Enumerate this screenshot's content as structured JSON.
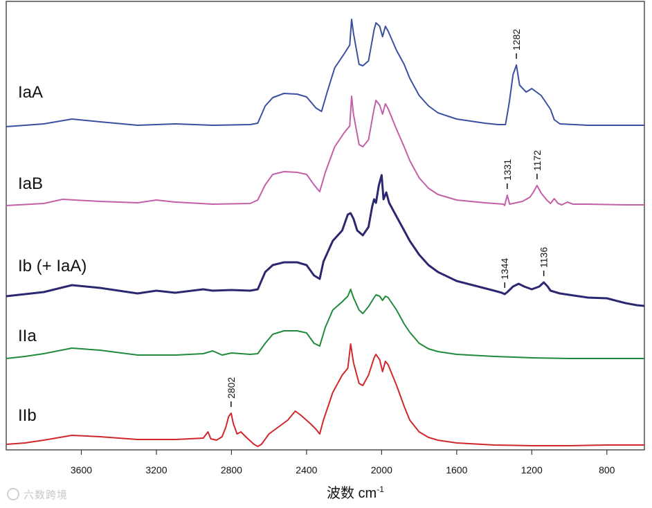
{
  "chart_data": {
    "type": "line",
    "title": "",
    "xlabel": "波数 cm",
    "xlabel_superscript": "-1",
    "ylabel": "",
    "xlim": [
      4000,
      600
    ],
    "x_ticks": [
      3600,
      3200,
      2800,
      2400,
      2000,
      1600,
      1200,
      800
    ],
    "grid": false,
    "legend": "none",
    "series": [
      {
        "name": "IaA",
        "color": "#3a4fa0",
        "stroke": 2,
        "baseline": 0,
        "points": [
          [
            4000,
            0
          ],
          [
            3800,
            4
          ],
          [
            3650,
            11
          ],
          [
            3500,
            7
          ],
          [
            3300,
            2
          ],
          [
            3100,
            4
          ],
          [
            2900,
            2
          ],
          [
            2700,
            3
          ],
          [
            2660,
            5
          ],
          [
            2620,
            30
          ],
          [
            2580,
            42
          ],
          [
            2520,
            48
          ],
          [
            2450,
            47
          ],
          [
            2400,
            43
          ],
          [
            2350,
            27
          ],
          [
            2320,
            22
          ],
          [
            2290,
            50
          ],
          [
            2250,
            85
          ],
          [
            2200,
            105
          ],
          [
            2170,
            118
          ],
          [
            2160,
            155
          ],
          [
            2150,
            135
          ],
          [
            2120,
            90
          ],
          [
            2100,
            88
          ],
          [
            2070,
            95
          ],
          [
            2040,
            140
          ],
          [
            2030,
            150
          ],
          [
            2010,
            145
          ],
          [
            1995,
            130
          ],
          [
            1980,
            145
          ],
          [
            1965,
            138
          ],
          [
            1920,
            110
          ],
          [
            1880,
            90
          ],
          [
            1850,
            70
          ],
          [
            1800,
            45
          ],
          [
            1750,
            30
          ],
          [
            1700,
            20
          ],
          [
            1600,
            11
          ],
          [
            1450,
            5
          ],
          [
            1380,
            3
          ],
          [
            1340,
            3
          ],
          [
            1320,
            35
          ],
          [
            1300,
            75
          ],
          [
            1282,
            89
          ],
          [
            1265,
            60
          ],
          [
            1230,
            50
          ],
          [
            1200,
            55
          ],
          [
            1150,
            45
          ],
          [
            1100,
            25
          ],
          [
            1080,
            10
          ],
          [
            1050,
            4
          ],
          [
            900,
            2
          ],
          [
            700,
            2
          ],
          [
            600,
            2
          ]
        ]
      },
      {
        "name": "IaB",
        "color": "#c25fa8",
        "stroke": 2,
        "baseline": 0,
        "points": [
          [
            4000,
            0
          ],
          [
            3800,
            3
          ],
          [
            3700,
            9
          ],
          [
            3500,
            6
          ],
          [
            3300,
            4
          ],
          [
            3200,
            8
          ],
          [
            3100,
            5
          ],
          [
            2900,
            2
          ],
          [
            2700,
            3
          ],
          [
            2660,
            8
          ],
          [
            2620,
            30
          ],
          [
            2580,
            45
          ],
          [
            2520,
            49
          ],
          [
            2450,
            48
          ],
          [
            2400,
            45
          ],
          [
            2360,
            30
          ],
          [
            2330,
            20
          ],
          [
            2300,
            48
          ],
          [
            2250,
            85
          ],
          [
            2200,
            105
          ],
          [
            2170,
            115
          ],
          [
            2160,
            158
          ],
          [
            2150,
            132
          ],
          [
            2120,
            88
          ],
          [
            2100,
            85
          ],
          [
            2070,
            95
          ],
          [
            2040,
            140
          ],
          [
            2030,
            152
          ],
          [
            2010,
            145
          ],
          [
            1995,
            132
          ],
          [
            1980,
            147
          ],
          [
            1965,
            140
          ],
          [
            1920,
            110
          ],
          [
            1880,
            85
          ],
          [
            1850,
            65
          ],
          [
            1800,
            40
          ],
          [
            1750,
            25
          ],
          [
            1700,
            16
          ],
          [
            1600,
            8
          ],
          [
            1450,
            4
          ],
          [
            1350,
            2
          ],
          [
            1344,
            0
          ],
          [
            1331,
            15
          ],
          [
            1318,
            2
          ],
          [
            1250,
            6
          ],
          [
            1210,
            12
          ],
          [
            1190,
            20
          ],
          [
            1172,
            29
          ],
          [
            1150,
            18
          ],
          [
            1120,
            8
          ],
          [
            1100,
            3
          ],
          [
            1080,
            10
          ],
          [
            1060,
            3
          ],
          [
            1040,
            1
          ],
          [
            1010,
            5
          ],
          [
            980,
            2
          ],
          [
            900,
            2
          ],
          [
            700,
            1
          ],
          [
            600,
            1
          ]
        ]
      },
      {
        "name": "Ib (+ IaA)",
        "color": "#2b2770",
        "stroke": 3,
        "baseline": 0,
        "points": [
          [
            4000,
            0
          ],
          [
            3900,
            3
          ],
          [
            3800,
            6
          ],
          [
            3650,
            16
          ],
          [
            3500,
            12
          ],
          [
            3300,
            4
          ],
          [
            3200,
            8
          ],
          [
            3100,
            5
          ],
          [
            2950,
            10
          ],
          [
            2900,
            8
          ],
          [
            2800,
            9
          ],
          [
            2700,
            8
          ],
          [
            2660,
            10
          ],
          [
            2620,
            35
          ],
          [
            2580,
            45
          ],
          [
            2520,
            49
          ],
          [
            2450,
            49
          ],
          [
            2400,
            45
          ],
          [
            2360,
            30
          ],
          [
            2330,
            25
          ],
          [
            2310,
            50
          ],
          [
            2260,
            80
          ],
          [
            2210,
            95
          ],
          [
            2180,
            118
          ],
          [
            2165,
            120
          ],
          [
            2150,
            112
          ],
          [
            2130,
            95
          ],
          [
            2100,
            88
          ],
          [
            2070,
            100
          ],
          [
            2050,
            130
          ],
          [
            2040,
            140
          ],
          [
            2030,
            135
          ],
          [
            2015,
            160
          ],
          [
            2000,
            175
          ],
          [
            1990,
            140
          ],
          [
            1975,
            150
          ],
          [
            1960,
            135
          ],
          [
            1920,
            115
          ],
          [
            1880,
            95
          ],
          [
            1850,
            80
          ],
          [
            1800,
            60
          ],
          [
            1750,
            45
          ],
          [
            1700,
            35
          ],
          [
            1600,
            22
          ],
          [
            1500,
            15
          ],
          [
            1400,
            8
          ],
          [
            1360,
            5
          ],
          [
            1344,
            3
          ],
          [
            1330,
            6
          ],
          [
            1300,
            14
          ],
          [
            1270,
            18
          ],
          [
            1240,
            14
          ],
          [
            1200,
            10
          ],
          [
            1160,
            14
          ],
          [
            1136,
            20
          ],
          [
            1115,
            14
          ],
          [
            1100,
            8
          ],
          [
            1050,
            4
          ],
          [
            1000,
            2
          ],
          [
            900,
            -2
          ],
          [
            800,
            -3
          ],
          [
            700,
            -10
          ],
          [
            640,
            -13
          ],
          [
            600,
            -14
          ]
        ]
      },
      {
        "name": "IIa",
        "color": "#1e8a3a",
        "stroke": 2,
        "baseline": 0,
        "points": [
          [
            4000,
            0
          ],
          [
            3900,
            3
          ],
          [
            3800,
            7
          ],
          [
            3650,
            15
          ],
          [
            3500,
            12
          ],
          [
            3300,
            5
          ],
          [
            3100,
            5
          ],
          [
            2950,
            7
          ],
          [
            2900,
            11
          ],
          [
            2850,
            5
          ],
          [
            2800,
            8
          ],
          [
            2700,
            6
          ],
          [
            2660,
            7
          ],
          [
            2620,
            22
          ],
          [
            2580,
            35
          ],
          [
            2520,
            40
          ],
          [
            2450,
            40
          ],
          [
            2400,
            37
          ],
          [
            2360,
            22
          ],
          [
            2330,
            18
          ],
          [
            2300,
            45
          ],
          [
            2260,
            70
          ],
          [
            2210,
            82
          ],
          [
            2180,
            90
          ],
          [
            2165,
            100
          ],
          [
            2150,
            88
          ],
          [
            2120,
            70
          ],
          [
            2100,
            65
          ],
          [
            2070,
            75
          ],
          [
            2040,
            88
          ],
          [
            2030,
            92
          ],
          [
            2010,
            90
          ],
          [
            1995,
            84
          ],
          [
            1980,
            90
          ],
          [
            1965,
            88
          ],
          [
            1920,
            70
          ],
          [
            1880,
            50
          ],
          [
            1850,
            38
          ],
          [
            1800,
            22
          ],
          [
            1750,
            14
          ],
          [
            1700,
            10
          ],
          [
            1600,
            6
          ],
          [
            1400,
            3
          ],
          [
            1200,
            1
          ],
          [
            1000,
            0
          ],
          [
            800,
            0
          ],
          [
            600,
            0
          ]
        ]
      },
      {
        "name": "IIb",
        "color": "#d1262b",
        "stroke": 2,
        "baseline": 0,
        "points": [
          [
            4000,
            0
          ],
          [
            3900,
            2
          ],
          [
            3800,
            6
          ],
          [
            3650,
            13
          ],
          [
            3500,
            11
          ],
          [
            3300,
            7
          ],
          [
            3100,
            7
          ],
          [
            2950,
            9
          ],
          [
            2925,
            18
          ],
          [
            2910,
            8
          ],
          [
            2880,
            6
          ],
          [
            2850,
            11
          ],
          [
            2830,
            25
          ],
          [
            2815,
            40
          ],
          [
            2802,
            45
          ],
          [
            2790,
            30
          ],
          [
            2770,
            15
          ],
          [
            2750,
            18
          ],
          [
            2720,
            10
          ],
          [
            2700,
            5
          ],
          [
            2680,
            0
          ],
          [
            2660,
            -3
          ],
          [
            2640,
            0
          ],
          [
            2600,
            15
          ],
          [
            2550,
            25
          ],
          [
            2500,
            35
          ],
          [
            2460,
            48
          ],
          [
            2430,
            42
          ],
          [
            2380,
            30
          ],
          [
            2350,
            22
          ],
          [
            2330,
            15
          ],
          [
            2310,
            35
          ],
          [
            2260,
            75
          ],
          [
            2210,
            100
          ],
          [
            2180,
            110
          ],
          [
            2165,
            145
          ],
          [
            2150,
            118
          ],
          [
            2120,
            88
          ],
          [
            2100,
            85
          ],
          [
            2070,
            100
          ],
          [
            2040,
            125
          ],
          [
            2030,
            130
          ],
          [
            2010,
            122
          ],
          [
            1995,
            105
          ],
          [
            1980,
            120
          ],
          [
            1965,
            115
          ],
          [
            1920,
            85
          ],
          [
            1880,
            55
          ],
          [
            1850,
            35
          ],
          [
            1800,
            18
          ],
          [
            1750,
            10
          ],
          [
            1700,
            6
          ],
          [
            1600,
            2
          ],
          [
            1400,
            -1
          ],
          [
            1200,
            -2
          ],
          [
            1000,
            -2
          ],
          [
            800,
            -1
          ],
          [
            600,
            -1
          ]
        ]
      }
    ],
    "series_labels": [
      "IaA",
      "IaB",
      "Ib (+ IaA)",
      "IIa",
      "IIb"
    ],
    "annotations": [
      {
        "series": 0,
        "x": 1282,
        "text": "1282"
      },
      {
        "series": 1,
        "x": 1331,
        "text": "1331"
      },
      {
        "series": 1,
        "x": 1172,
        "text": "1172"
      },
      {
        "series": 2,
        "x": 1344,
        "text": "1344"
      },
      {
        "series": 2,
        "x": 1136,
        "text": "1136"
      },
      {
        "series": 4,
        "x": 2802,
        "text": "2802"
      }
    ]
  },
  "watermark": "六数跨境"
}
